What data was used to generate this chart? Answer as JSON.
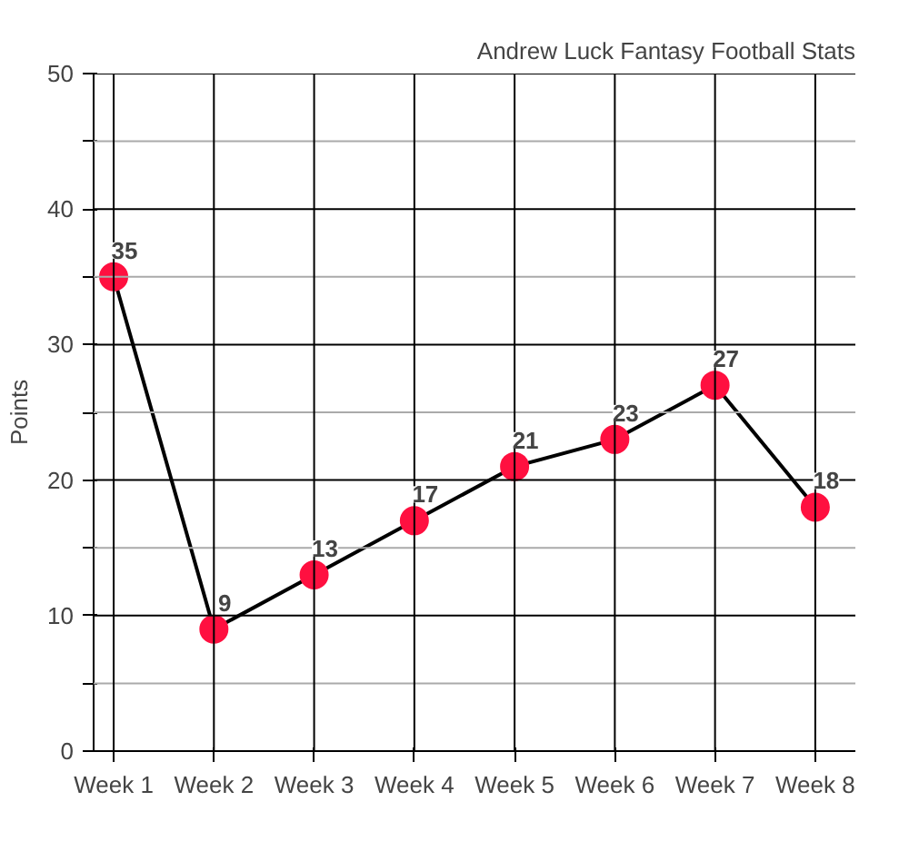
{
  "chart_data": {
    "type": "line",
    "title": "Andrew Luck Fantasy Football Stats",
    "ylabel": "Points",
    "categories": [
      "Week 1",
      "Week 2",
      "Week 3",
      "Week 4",
      "Week 5",
      "Week 6",
      "Week 7",
      "Week 8"
    ],
    "series": [
      {
        "color": "#000000",
        "colors": [
          "#ff1040",
          "#ff1040",
          "#ff1040",
          "#ff1040",
          "#ff1040",
          "#ff1040",
          "#ff1040",
          "#ff1040"
        ],
        "values": [
          35,
          9,
          13,
          17,
          21,
          23,
          27,
          18
        ]
      }
    ],
    "marker": "circle",
    "data_labels": true,
    "grid": true,
    "ylim": [
      0,
      50
    ],
    "yticks": [
      0,
      {
        "value": 5,
        "label": null
      },
      10,
      {
        "value": 15,
        "label": null
      },
      20,
      {
        "value": 25,
        "label": null
      },
      30,
      {
        "value": 35,
        "label": null
      },
      40,
      {
        "value": 45,
        "label": null
      },
      50
    ]
  }
}
